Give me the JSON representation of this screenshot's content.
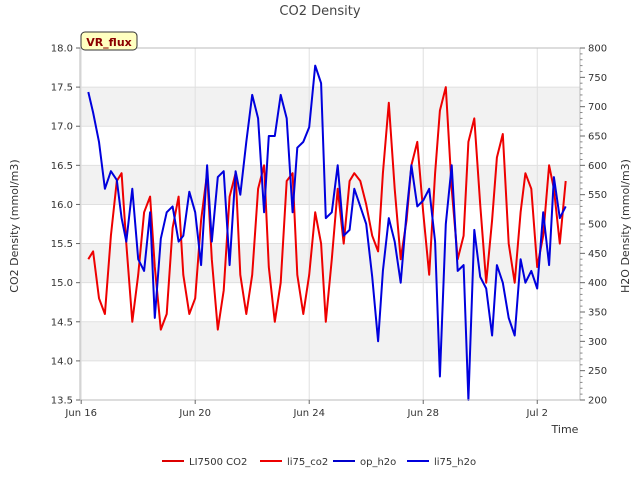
{
  "chart_data": {
    "type": "line",
    "title": "CO2 Density",
    "xlabel": "Time",
    "ylabel": "CO2 Density (mmol/m3)",
    "y2label": "H2O Density (mmol/m3)",
    "badge": "VR_flux",
    "xlim": [
      "2022-06-15T23:00",
      "2022-07-03T12:00"
    ],
    "ylim": [
      13.5,
      18.0
    ],
    "y2lim": [
      200,
      800
    ],
    "x_ticks": [
      "Jun 16",
      "Jun 20",
      "Jun 24",
      "Jun 28",
      "Jul 2"
    ],
    "x_tick_dates": [
      "2022-06-16",
      "2022-06-20",
      "2022-06-24",
      "2022-06-28",
      "2022-07-02"
    ],
    "y_ticks": [
      "13.5",
      "14.0",
      "14.5",
      "15.0",
      "15.5",
      "16.0",
      "16.5",
      "17.0",
      "17.5",
      "18.0"
    ],
    "y2_ticks": [
      "200",
      "250",
      "300",
      "350",
      "400",
      "450",
      "500",
      "550",
      "600",
      "650",
      "700",
      "750",
      "800"
    ],
    "grid_bands": true,
    "legend_position": "bottom",
    "series": [
      {
        "name": "LI7500 CO2",
        "color": "#dd0000",
        "axis": "left",
        "x": [],
        "values": []
      },
      {
        "name": "li75_co2",
        "color": "#ee0000",
        "axis": "left",
        "x": [
          "2022-06-16T06:00",
          "2022-06-16T10:00",
          "2022-06-16T15:00",
          "2022-06-16T20:00",
          "2022-06-17T01:00",
          "2022-06-17T06:00",
          "2022-06-17T10:00",
          "2022-06-17T14:00",
          "2022-06-17T19:00",
          "2022-06-18T00:00",
          "2022-06-18T05:00",
          "2022-06-18T10:00",
          "2022-06-18T14:00",
          "2022-06-18T19:00",
          "2022-06-19T00:00",
          "2022-06-19T05:00",
          "2022-06-19T10:00",
          "2022-06-19T14:00",
          "2022-06-19T19:00",
          "2022-06-20T00:00",
          "2022-06-20T05:00",
          "2022-06-20T10:00",
          "2022-06-20T14:00",
          "2022-06-20T19:00",
          "2022-06-21T00:00",
          "2022-06-21T05:00",
          "2022-06-21T10:00",
          "2022-06-21T14:00",
          "2022-06-21T19:00",
          "2022-06-22T00:00",
          "2022-06-22T05:00",
          "2022-06-22T10:00",
          "2022-06-22T14:00",
          "2022-06-22T19:00",
          "2022-06-23T00:00",
          "2022-06-23T05:00",
          "2022-06-23T10:00",
          "2022-06-23T14:00",
          "2022-06-23T19:00",
          "2022-06-24T00:00",
          "2022-06-24T05:00",
          "2022-06-24T10:00",
          "2022-06-24T14:00",
          "2022-06-24T19:00",
          "2022-06-25T00:00",
          "2022-06-25T05:00",
          "2022-06-25T10:00",
          "2022-06-25T14:00",
          "2022-06-25T19:00",
          "2022-06-26T00:00",
          "2022-06-26T05:00",
          "2022-06-26T10:00",
          "2022-06-26T14:00",
          "2022-06-26T19:00",
          "2022-06-27T00:00",
          "2022-06-27T05:00",
          "2022-06-27T10:00",
          "2022-06-27T14:00",
          "2022-06-27T19:00",
          "2022-06-28T00:00",
          "2022-06-28T05:00",
          "2022-06-28T10:00",
          "2022-06-28T14:00",
          "2022-06-28T19:00",
          "2022-06-29T00:00",
          "2022-06-29T05:00",
          "2022-06-29T10:00",
          "2022-06-29T14:00",
          "2022-06-29T19:00",
          "2022-06-30T00:00",
          "2022-06-30T05:00",
          "2022-06-30T10:00",
          "2022-06-30T14:00",
          "2022-06-30T19:00",
          "2022-07-01T00:00",
          "2022-07-01T05:00",
          "2022-07-01T10:00",
          "2022-07-01T14:00",
          "2022-07-01T19:00",
          "2022-07-02T00:00",
          "2022-07-02T05:00",
          "2022-07-02T10:00",
          "2022-07-02T14:00",
          "2022-07-02T19:00",
          "2022-07-03T00:00"
        ],
        "values": [
          15.3,
          15.4,
          14.8,
          14.6,
          15.6,
          16.3,
          16.4,
          15.5,
          14.5,
          15.1,
          15.9,
          16.1,
          15.2,
          14.4,
          14.6,
          15.7,
          16.1,
          15.1,
          14.6,
          14.8,
          15.8,
          16.4,
          15.3,
          14.4,
          14.9,
          16.1,
          16.4,
          15.1,
          14.6,
          15.1,
          16.2,
          16.5,
          15.2,
          14.5,
          15.0,
          16.3,
          16.4,
          15.1,
          14.6,
          15.1,
          15.9,
          15.5,
          14.5,
          15.3,
          16.2,
          15.5,
          16.3,
          16.4,
          16.3,
          16.0,
          15.6,
          15.4,
          16.4,
          17.3,
          16.2,
          15.3,
          15.8,
          16.5,
          16.8,
          15.9,
          15.1,
          16.4,
          17.2,
          17.5,
          16.2,
          15.3,
          15.6,
          16.8,
          17.1,
          16.0,
          15.0,
          15.8,
          16.6,
          16.9,
          15.5,
          15.0,
          15.9,
          16.4,
          16.2,
          15.2,
          15.6,
          16.5,
          16.2,
          15.5,
          16.3
        ]
      },
      {
        "name": "op_h2o",
        "color": "#0000cc",
        "axis": "right",
        "x": [],
        "values": []
      },
      {
        "name": "li75_h2o",
        "color": "#0000dd",
        "axis": "right",
        "x": [
          "2022-06-16T06:00",
          "2022-06-16T10:00",
          "2022-06-16T15:00",
          "2022-06-16T20:00",
          "2022-06-17T01:00",
          "2022-06-17T06:00",
          "2022-06-17T10:00",
          "2022-06-17T14:00",
          "2022-06-17T19:00",
          "2022-06-18T00:00",
          "2022-06-18T05:00",
          "2022-06-18T10:00",
          "2022-06-18T14:00",
          "2022-06-18T19:00",
          "2022-06-19T00:00",
          "2022-06-19T05:00",
          "2022-06-19T10:00",
          "2022-06-19T14:00",
          "2022-06-19T19:00",
          "2022-06-20T00:00",
          "2022-06-20T05:00",
          "2022-06-20T10:00",
          "2022-06-20T14:00",
          "2022-06-20T19:00",
          "2022-06-21T00:00",
          "2022-06-21T05:00",
          "2022-06-21T10:00",
          "2022-06-21T14:00",
          "2022-06-21T19:00",
          "2022-06-22T00:00",
          "2022-06-22T05:00",
          "2022-06-22T10:00",
          "2022-06-22T14:00",
          "2022-06-22T19:00",
          "2022-06-23T00:00",
          "2022-06-23T05:00",
          "2022-06-23T10:00",
          "2022-06-23T14:00",
          "2022-06-23T19:00",
          "2022-06-24T00:00",
          "2022-06-24T05:00",
          "2022-06-24T10:00",
          "2022-06-24T14:00",
          "2022-06-24T19:00",
          "2022-06-25T00:00",
          "2022-06-25T05:00",
          "2022-06-25T10:00",
          "2022-06-25T14:00",
          "2022-06-25T19:00",
          "2022-06-26T00:00",
          "2022-06-26T05:00",
          "2022-06-26T10:00",
          "2022-06-26T14:00",
          "2022-06-26T19:00",
          "2022-06-27T00:00",
          "2022-06-27T05:00",
          "2022-06-27T10:00",
          "2022-06-27T14:00",
          "2022-06-27T19:00",
          "2022-06-28T00:00",
          "2022-06-28T05:00",
          "2022-06-28T10:00",
          "2022-06-28T14:00",
          "2022-06-28T19:00",
          "2022-06-29T00:00",
          "2022-06-29T05:00",
          "2022-06-29T10:00",
          "2022-06-29T14:00",
          "2022-06-29T19:00",
          "2022-06-30T00:00",
          "2022-06-30T05:00",
          "2022-06-30T10:00",
          "2022-06-30T14:00",
          "2022-06-30T19:00",
          "2022-07-01T00:00",
          "2022-07-01T05:00",
          "2022-07-01T10:00",
          "2022-07-01T14:00",
          "2022-07-01T19:00",
          "2022-07-02T00:00",
          "2022-07-02T05:00",
          "2022-07-02T10:00",
          "2022-07-02T14:00",
          "2022-07-02T19:00",
          "2022-07-03T00:00"
        ],
        "values": [
          725,
          690,
          640,
          560,
          590,
          575,
          510,
          470,
          560,
          440,
          420,
          520,
          340,
          475,
          520,
          530,
          470,
          480,
          555,
          520,
          430,
          600,
          470,
          580,
          590,
          430,
          590,
          550,
          640,
          720,
          680,
          520,
          650,
          650,
          720,
          680,
          520,
          630,
          640,
          665,
          770,
          740,
          510,
          520,
          600,
          480,
          490,
          560,
          530,
          500,
          410,
          300,
          420,
          510,
          470,
          400,
          520,
          600,
          530,
          540,
          560,
          470,
          240,
          500,
          600,
          420,
          430,
          200,
          490,
          410,
          390,
          310,
          430,
          400,
          340,
          310,
          440,
          400,
          420,
          390,
          520,
          430,
          580,
          510,
          530
        ]
      }
    ]
  }
}
